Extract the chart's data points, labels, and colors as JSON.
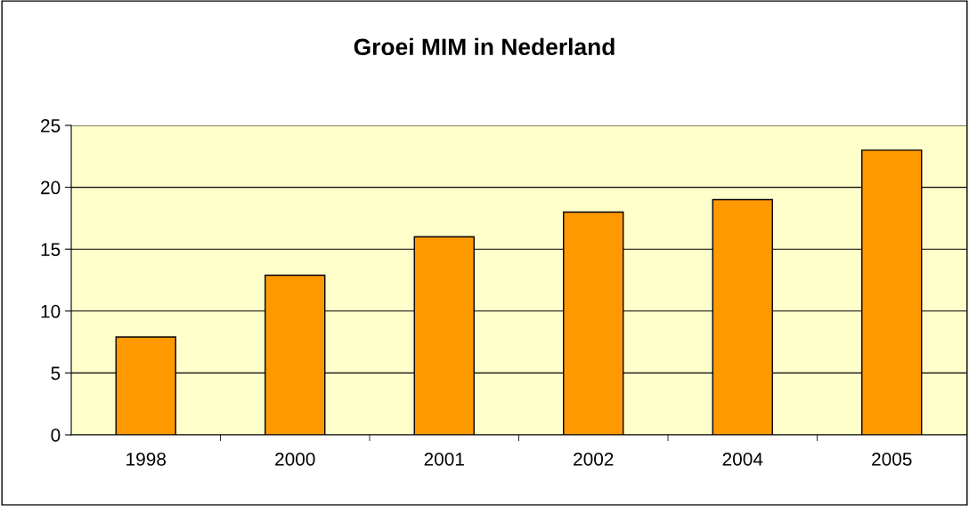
{
  "chart_data": {
    "type": "bar",
    "title": "Groei MIM in Nederland",
    "categories": [
      "1998",
      "2000",
      "2001",
      "2002",
      "2004",
      "2005"
    ],
    "values": [
      7.9,
      12.9,
      16,
      18,
      19,
      23
    ],
    "color": "#ff9900",
    "ylim": [
      0,
      25
    ],
    "yticks": [
      0,
      5,
      10,
      15,
      20,
      25
    ],
    "grid": "y",
    "legend": false
  }
}
